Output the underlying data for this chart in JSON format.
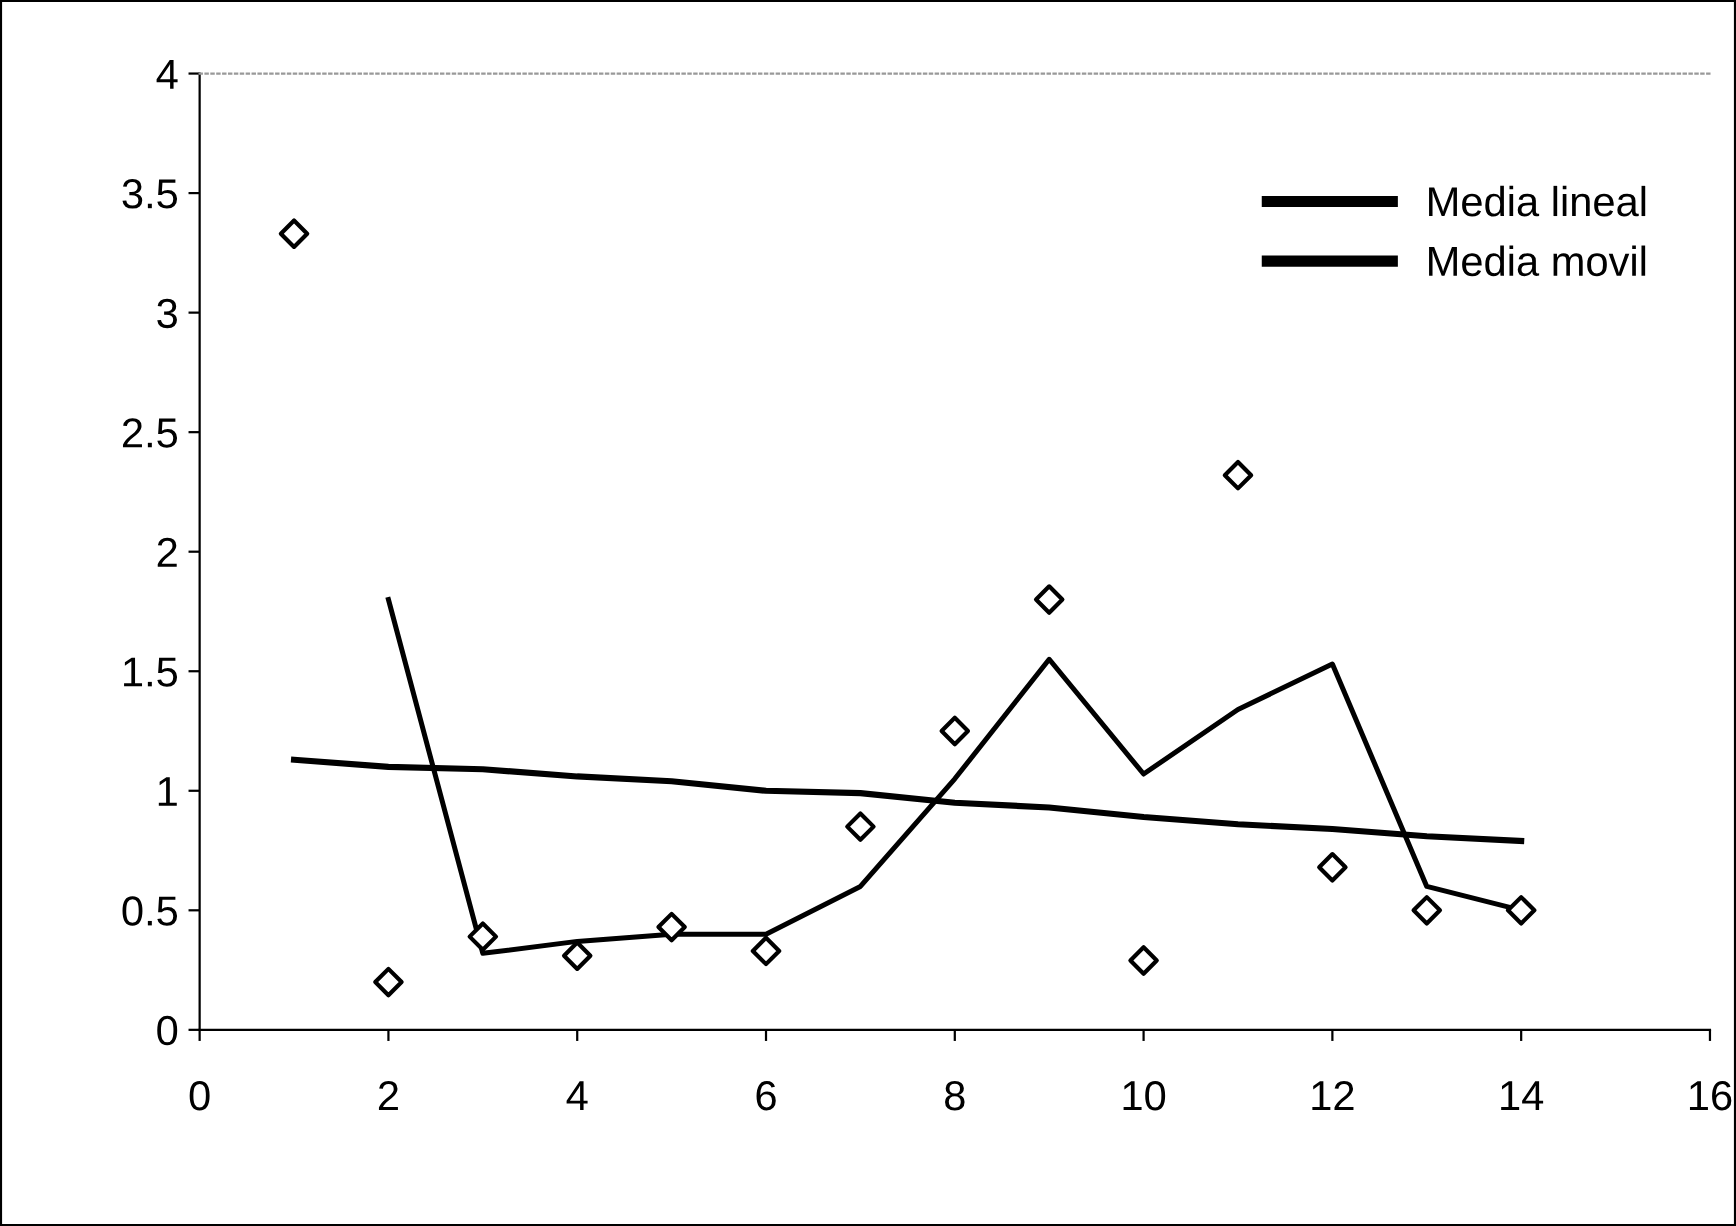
{
  "chart_data": {
    "type": "scatter",
    "x": [
      1,
      2,
      3,
      4,
      5,
      6,
      7,
      8,
      9,
      10,
      11,
      12,
      13,
      14
    ],
    "series": [
      {
        "color": "#000000",
        "marker": "diamond",
        "values": [
          3.33,
          0.2,
          0.39,
          0.31,
          0.43,
          0.33,
          0.85,
          1.25,
          1.8,
          0.29,
          2.32,
          0.68,
          0.5,
          0.5
        ]
      },
      {
        "type": "line",
        "name": "Media lineal",
        "color": "#000000",
        "marker": "none",
        "values": [
          1.13,
          1.1,
          1.09,
          1.06,
          1.04,
          1.0,
          0.99,
          0.95,
          0.93,
          0.89,
          0.86,
          0.84,
          0.81,
          0.79
        ]
      },
      {
        "type": "line",
        "name": "Media movil",
        "color": "#000000",
        "marker": "none",
        "values": [
          null,
          1.8,
          0.32,
          0.37,
          0.4,
          0.4,
          0.6,
          1.05,
          1.55,
          1.07,
          1.34,
          1.53,
          0.6,
          0.5
        ]
      }
    ],
    "xlim": [
      0,
      16
    ],
    "xticks": [
      0,
      2,
      4,
      6,
      8,
      10,
      12,
      14,
      16
    ],
    "ylim": [
      0,
      4
    ],
    "yticks": [
      0,
      0.5,
      1,
      1.5,
      2,
      2.5,
      3,
      3.5,
      4
    ],
    "grid": false,
    "legend": "top right"
  }
}
